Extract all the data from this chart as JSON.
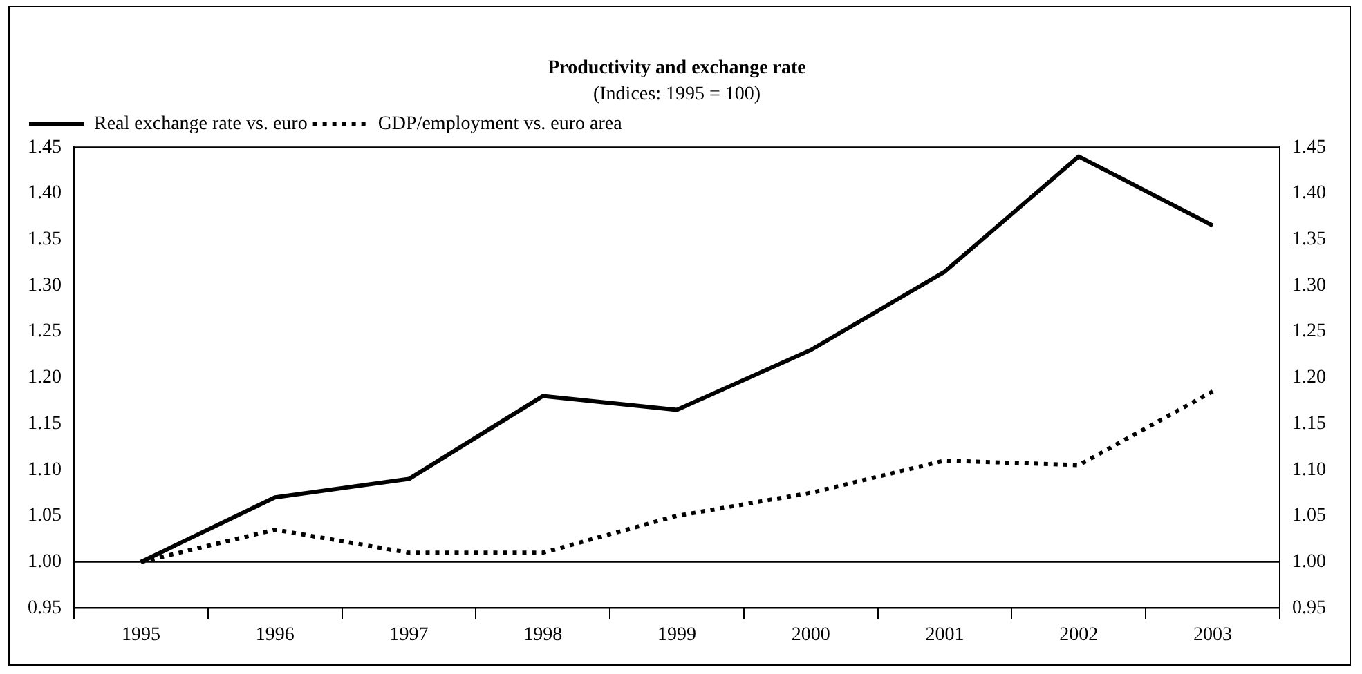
{
  "chart_data": {
    "type": "line",
    "title": "Productivity and exchange rate",
    "subtitle": "(Indices: 1995 = 100)",
    "categories": [
      "1995",
      "1996",
      "1997",
      "1998",
      "1999",
      "2000",
      "2001",
      "2002",
      "2003"
    ],
    "series": [
      {
        "name": "Real exchange rate vs. euro",
        "color": "#000000",
        "line_style": "solid",
        "values": [
          1.0,
          1.07,
          1.09,
          1.18,
          1.165,
          1.23,
          1.315,
          1.44,
          1.365
        ]
      },
      {
        "name": "GDP/employment vs. euro area",
        "color": "#000000",
        "line_style": "dotted",
        "values": [
          1.0,
          1.035,
          1.01,
          1.01,
          1.05,
          1.075,
          1.11,
          1.105,
          1.185
        ]
      }
    ],
    "ylim": [
      0.95,
      1.45
    ],
    "yticks": [
      {
        "value": 0.95,
        "label": "0.95"
      },
      {
        "value": 1.0,
        "label": "1.00"
      },
      {
        "value": 1.05,
        "label": "1.05"
      },
      {
        "value": 1.1,
        "label": "1.10"
      },
      {
        "value": 1.15,
        "label": "1.15"
      },
      {
        "value": 1.2,
        "label": "1.20"
      },
      {
        "value": 1.25,
        "label": "1.25"
      },
      {
        "value": 1.3,
        "label": "1.30"
      },
      {
        "value": 1.35,
        "label": "1.35"
      },
      {
        "value": 1.4,
        "label": "1.40"
      },
      {
        "value": 1.45,
        "label": "1.45"
      }
    ],
    "y2lim": [
      0.95,
      1.45
    ],
    "y2ticks": [
      {
        "value": 0.95,
        "label": "0.95"
      },
      {
        "value": 1.0,
        "label": "1.00"
      },
      {
        "value": 1.05,
        "label": "1.05"
      },
      {
        "value": 1.1,
        "label": "1.10"
      },
      {
        "value": 1.15,
        "label": "1.15"
      },
      {
        "value": 1.2,
        "label": "1.20"
      },
      {
        "value": 1.25,
        "label": "1.25"
      },
      {
        "value": 1.3,
        "label": "1.30"
      },
      {
        "value": 1.35,
        "label": "1.35"
      },
      {
        "value": 1.4,
        "label": "1.40"
      },
      {
        "value": 1.45,
        "label": "1.45"
      }
    ],
    "ref_lines": [
      {
        "axis": "y",
        "value": 1.0,
        "color": "#000000"
      }
    ],
    "grid": false,
    "legend": "top left",
    "marker": "none"
  }
}
